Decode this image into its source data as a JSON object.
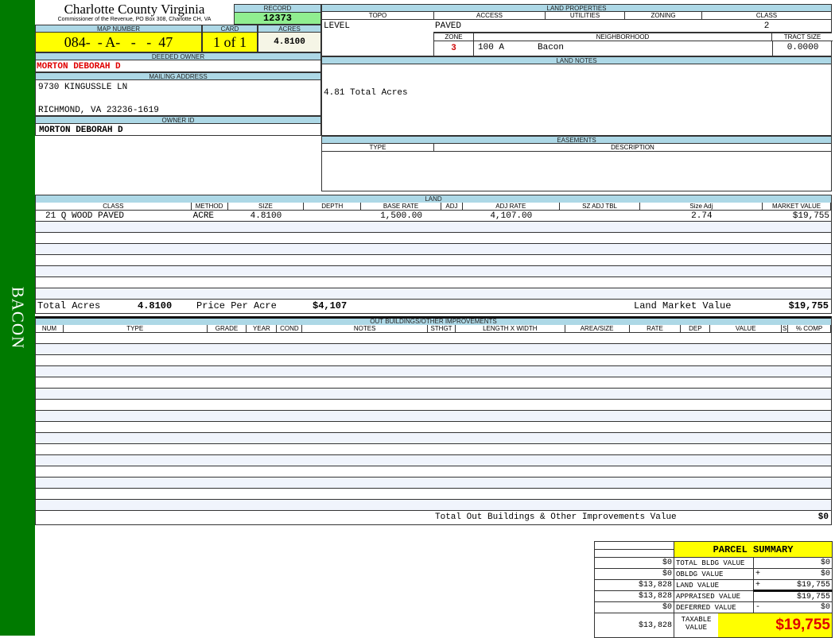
{
  "sidebar": {
    "label": "BACON"
  },
  "header": {
    "title": "Charlotte County Virginia",
    "subtitle": "Commissioner of the Revenue, PO Box 308, Charlotte CH, VA"
  },
  "record": {
    "label": "RECORD",
    "value": "12373"
  },
  "map": {
    "map_label": "MAP NUMBER",
    "map_value": "084-  - A-   -   -  47",
    "card_label": "CARD",
    "card_value": "1 of 1",
    "acres_label": "ACRES",
    "acres_value": "4.8100"
  },
  "owner": {
    "deeded_label": "DEEDED OWNER",
    "deeded_value": "MORTON DEBORAH D",
    "mailing_label": "MAILING ADDRESS",
    "address1": "9730 KINGUSSLE LN",
    "address2": "RICHMOND, VA 23236-1619",
    "owner_id_label": "OWNER ID",
    "owner_id_value": "MORTON DEBORAH D"
  },
  "land_properties": {
    "title": "LAND PROPERTIES",
    "topo_label": "TOPO",
    "access_label": "ACCESS",
    "utilities_label": "UTILITIES",
    "zoning_label": "ZONING",
    "class_label": "CLASS",
    "topo": "LEVEL",
    "access": "PAVED",
    "utilities": "",
    "zoning": "",
    "class": "2",
    "zone_label": "ZONE",
    "neighborhood_label": "NEIGHBORHOOD",
    "tract_label": "TRACT SIZE",
    "zone": "3",
    "neighborhood_code": "100 A",
    "neighborhood": "Bacon",
    "tract_size": "0.0000"
  },
  "land_notes": {
    "title": "LAND NOTES",
    "text": "4.81 Total Acres"
  },
  "easements": {
    "title": "EASEMENTS",
    "type_label": "TYPE",
    "description_label": "DESCRIPTION"
  },
  "land": {
    "title": "LAND",
    "columns": [
      "CLASS",
      "METHOD",
      "SIZE",
      "DEPTH",
      "BASE RATE",
      "ADJ",
      "ADJ RATE",
      "SZ ADJ TBL",
      "Size Adj",
      "MARKET VALUE"
    ],
    "rows": [
      [
        "21 Q WOOD PAVED",
        "ACRE",
        "4.8100",
        "",
        "1,500.00",
        "",
        "4,107.00",
        "",
        "2.74",
        "$19,755"
      ]
    ],
    "total_acres_label": "Total Acres",
    "total_acres": "4.8100",
    "price_per_acre_label": "Price Per Acre",
    "price_per_acre": "$4,107",
    "market_value_label": "Land Market Value",
    "market_value": "$19,755"
  },
  "outbuildings": {
    "title": "OUT BUILDINGS/OTHER IMPROVEMENTS",
    "columns": [
      "NUM",
      "TYPE",
      "GRADE",
      "YEAR",
      "COND",
      "NOTES",
      "STHGT",
      "LENGTH X WIDTH",
      "AREA/SIZE",
      "RATE",
      "DEP",
      "VALUE",
      "S",
      "% COMP"
    ],
    "total_label": "Total Out Buildings & Other Improvements Value",
    "total": "$0"
  },
  "summary": {
    "title": "PARCEL SUMMARY",
    "rows": [
      {
        "left": "$0",
        "label": "TOTAL BLDG VALUE",
        "op": "",
        "value": "$0"
      },
      {
        "left": "$0",
        "label": "OBLDG VALUE",
        "op": "+",
        "value": "$0"
      },
      {
        "left": "$13,828",
        "label": "LAND VALUE",
        "op": "+",
        "value": "$19,755"
      },
      {
        "left": "$13,828",
        "label": "APPRAISED VALUE",
        "op": "",
        "value": "$19,755"
      },
      {
        "left": "$0",
        "label": "DEFERRED VALUE",
        "op": "-",
        "value": "$0"
      }
    ],
    "taxable_left": "$13,828",
    "taxable_label": "TAXABLE VALUE",
    "taxable_value": "$19,755"
  }
}
